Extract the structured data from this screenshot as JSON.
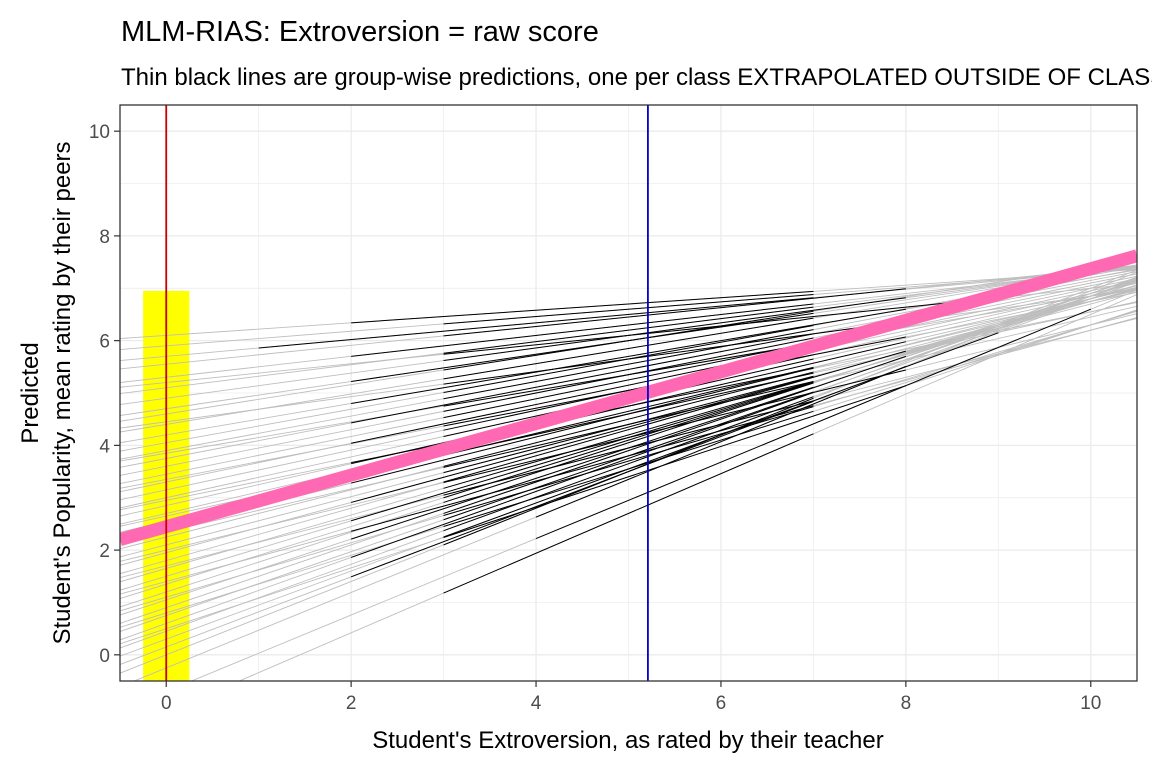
{
  "chart_data": {
    "type": "line",
    "title": "MLM-RIAS: Extroversion = raw score",
    "subtitle": "Thin black lines are group-wise predictions, one per class EXTRAPOLATED OUTSIDE OF CLASS RANGE",
    "xlabel": "Student's Extroversion, as rated by their teacher",
    "ylabel_lines": [
      "Predicted",
      "Student's Popularity, mean rating by their peers"
    ],
    "xlim": [
      -0.5,
      10.5
    ],
    "ylim": [
      -0.5,
      10.5
    ],
    "x_ticks": [
      0,
      2,
      4,
      6,
      8,
      10
    ],
    "y_ticks": [
      0,
      2,
      4,
      6,
      8,
      10
    ],
    "grid": true,
    "fixed_effect": {
      "x": [
        -0.5,
        10.5
      ],
      "y": [
        2.2,
        7.62
      ],
      "color": "#ff69b4"
    },
    "reference_lines": [
      {
        "axis": "x",
        "value": 0,
        "color": "#cc0000"
      },
      {
        "axis": "x",
        "value": 5.21,
        "color": "#0000cc"
      }
    ],
    "highlight_band": {
      "x": [
        -0.25,
        0.25
      ],
      "y": [
        -0.5,
        6.95
      ],
      "color": "#ffff00"
    },
    "extrapolated_color": "#bebebe",
    "observed_color": "#000000",
    "class_lines": [
      {
        "a": 6.1,
        "b": 0.12,
        "r": [
          2,
          7
        ]
      },
      {
        "a": 5.9,
        "b": 0.14,
        "r": [
          3,
          7
        ]
      },
      {
        "a": 5.7,
        "b": 0.16,
        "r": [
          1,
          7
        ]
      },
      {
        "a": 5.55,
        "b": 0.18,
        "r": [
          3,
          8
        ]
      },
      {
        "a": 5.3,
        "b": 0.2,
        "r": [
          2,
          7
        ]
      },
      {
        "a": 5.1,
        "b": 0.22,
        "r": [
          3,
          7
        ]
      },
      {
        "a": 4.9,
        "b": 0.24,
        "r": [
          3,
          8
        ]
      },
      {
        "a": 4.7,
        "b": 0.26,
        "r": [
          2,
          7
        ]
      },
      {
        "a": 4.6,
        "b": 0.28,
        "r": [
          3,
          7
        ]
      },
      {
        "a": 4.4,
        "b": 0.29,
        "r": [
          3,
          7
        ]
      },
      {
        "a": 4.2,
        "b": 0.3,
        "r": [
          2,
          8
        ]
      },
      {
        "a": 4.05,
        "b": 0.32,
        "r": [
          3,
          7
        ]
      },
      {
        "a": 3.9,
        "b": 0.33,
        "r": [
          3,
          7
        ]
      },
      {
        "a": 3.75,
        "b": 0.34,
        "r": [
          2,
          7
        ]
      },
      {
        "a": 3.6,
        "b": 0.35,
        "r": [
          3,
          7
        ]
      },
      {
        "a": 3.45,
        "b": 0.36,
        "r": [
          3,
          8
        ]
      },
      {
        "a": 3.3,
        "b": 0.37,
        "r": [
          2,
          7
        ]
      },
      {
        "a": 3.15,
        "b": 0.38,
        "r": [
          3,
          7
        ]
      },
      {
        "a": 3.0,
        "b": 0.39,
        "r": [
          3,
          7
        ]
      },
      {
        "a": 2.85,
        "b": 0.4,
        "r": [
          2,
          7
        ]
      },
      {
        "a": 2.7,
        "b": 0.41,
        "r": [
          3,
          8
        ]
      },
      {
        "a": 2.55,
        "b": 0.42,
        "r": [
          3,
          7
        ]
      },
      {
        "a": 2.4,
        "b": 0.44,
        "r": [
          2,
          7
        ]
      },
      {
        "a": 2.25,
        "b": 0.45,
        "r": [
          3,
          7
        ]
      },
      {
        "a": 2.1,
        "b": 0.46,
        "r": [
          3,
          7
        ]
      },
      {
        "a": 1.95,
        "b": 0.48,
        "r": [
          2,
          7
        ]
      },
      {
        "a": 1.8,
        "b": 0.5,
        "r": [
          3,
          8
        ]
      },
      {
        "a": 1.65,
        "b": 0.51,
        "r": [
          3,
          7
        ]
      },
      {
        "a": 1.5,
        "b": 0.53,
        "r": [
          2,
          7
        ]
      },
      {
        "a": 1.35,
        "b": 0.55,
        "r": [
          3,
          7
        ]
      },
      {
        "a": 1.2,
        "b": 0.57,
        "r": [
          3,
          7
        ]
      },
      {
        "a": 1.05,
        "b": 0.58,
        "r": [
          2,
          7
        ]
      },
      {
        "a": 0.9,
        "b": 0.6,
        "r": [
          3,
          8
        ]
      },
      {
        "a": 0.75,
        "b": 0.61,
        "r": [
          3,
          7
        ]
      },
      {
        "a": 0.6,
        "b": 0.63,
        "r": [
          2,
          7
        ]
      },
      {
        "a": 0.45,
        "b": 0.64,
        "r": [
          3,
          7
        ]
      },
      {
        "a": 0.3,
        "b": 0.65,
        "r": [
          3,
          9
        ]
      },
      {
        "a": 0.15,
        "b": 0.67,
        "r": [
          2,
          7
        ]
      },
      {
        "a": 0.0,
        "b": 0.7,
        "r": [
          3,
          7
        ]
      },
      {
        "a": -0.25,
        "b": 0.72,
        "r": [
          4,
          8
        ]
      },
      {
        "a": -0.7,
        "b": 0.73,
        "r": [
          4,
          10
        ]
      },
      {
        "a": -1.1,
        "b": 0.76,
        "r": [
          3,
          7
        ]
      },
      {
        "a": 5.2,
        "b": 0.18,
        "r": [
          3,
          9
        ]
      },
      {
        "a": 4.45,
        "b": 0.24,
        "r": [
          3,
          8
        ]
      },
      {
        "a": 3.85,
        "b": 0.3,
        "r": [
          3,
          7
        ]
      },
      {
        "a": 3.35,
        "b": 0.34,
        "r": [
          3,
          8
        ]
      },
      {
        "a": 2.95,
        "b": 0.36,
        "r": [
          2,
          7
        ]
      },
      {
        "a": 2.65,
        "b": 0.39,
        "r": [
          3,
          7
        ]
      },
      {
        "a": 2.35,
        "b": 0.41,
        "r": [
          3,
          7
        ]
      },
      {
        "a": 2.0,
        "b": 0.43,
        "r": [
          3,
          8
        ]
      },
      {
        "a": 1.7,
        "b": 0.45,
        "r": [
          3,
          7
        ]
      },
      {
        "a": 1.4,
        "b": 0.48,
        "r": [
          2,
          7
        ]
      },
      {
        "a": 1.1,
        "b": 0.52,
        "r": [
          3,
          7
        ]
      },
      {
        "a": 0.8,
        "b": 0.55,
        "r": [
          3,
          7
        ]
      },
      {
        "a": 0.5,
        "b": 0.58,
        "r": [
          3,
          8
        ]
      }
    ]
  }
}
